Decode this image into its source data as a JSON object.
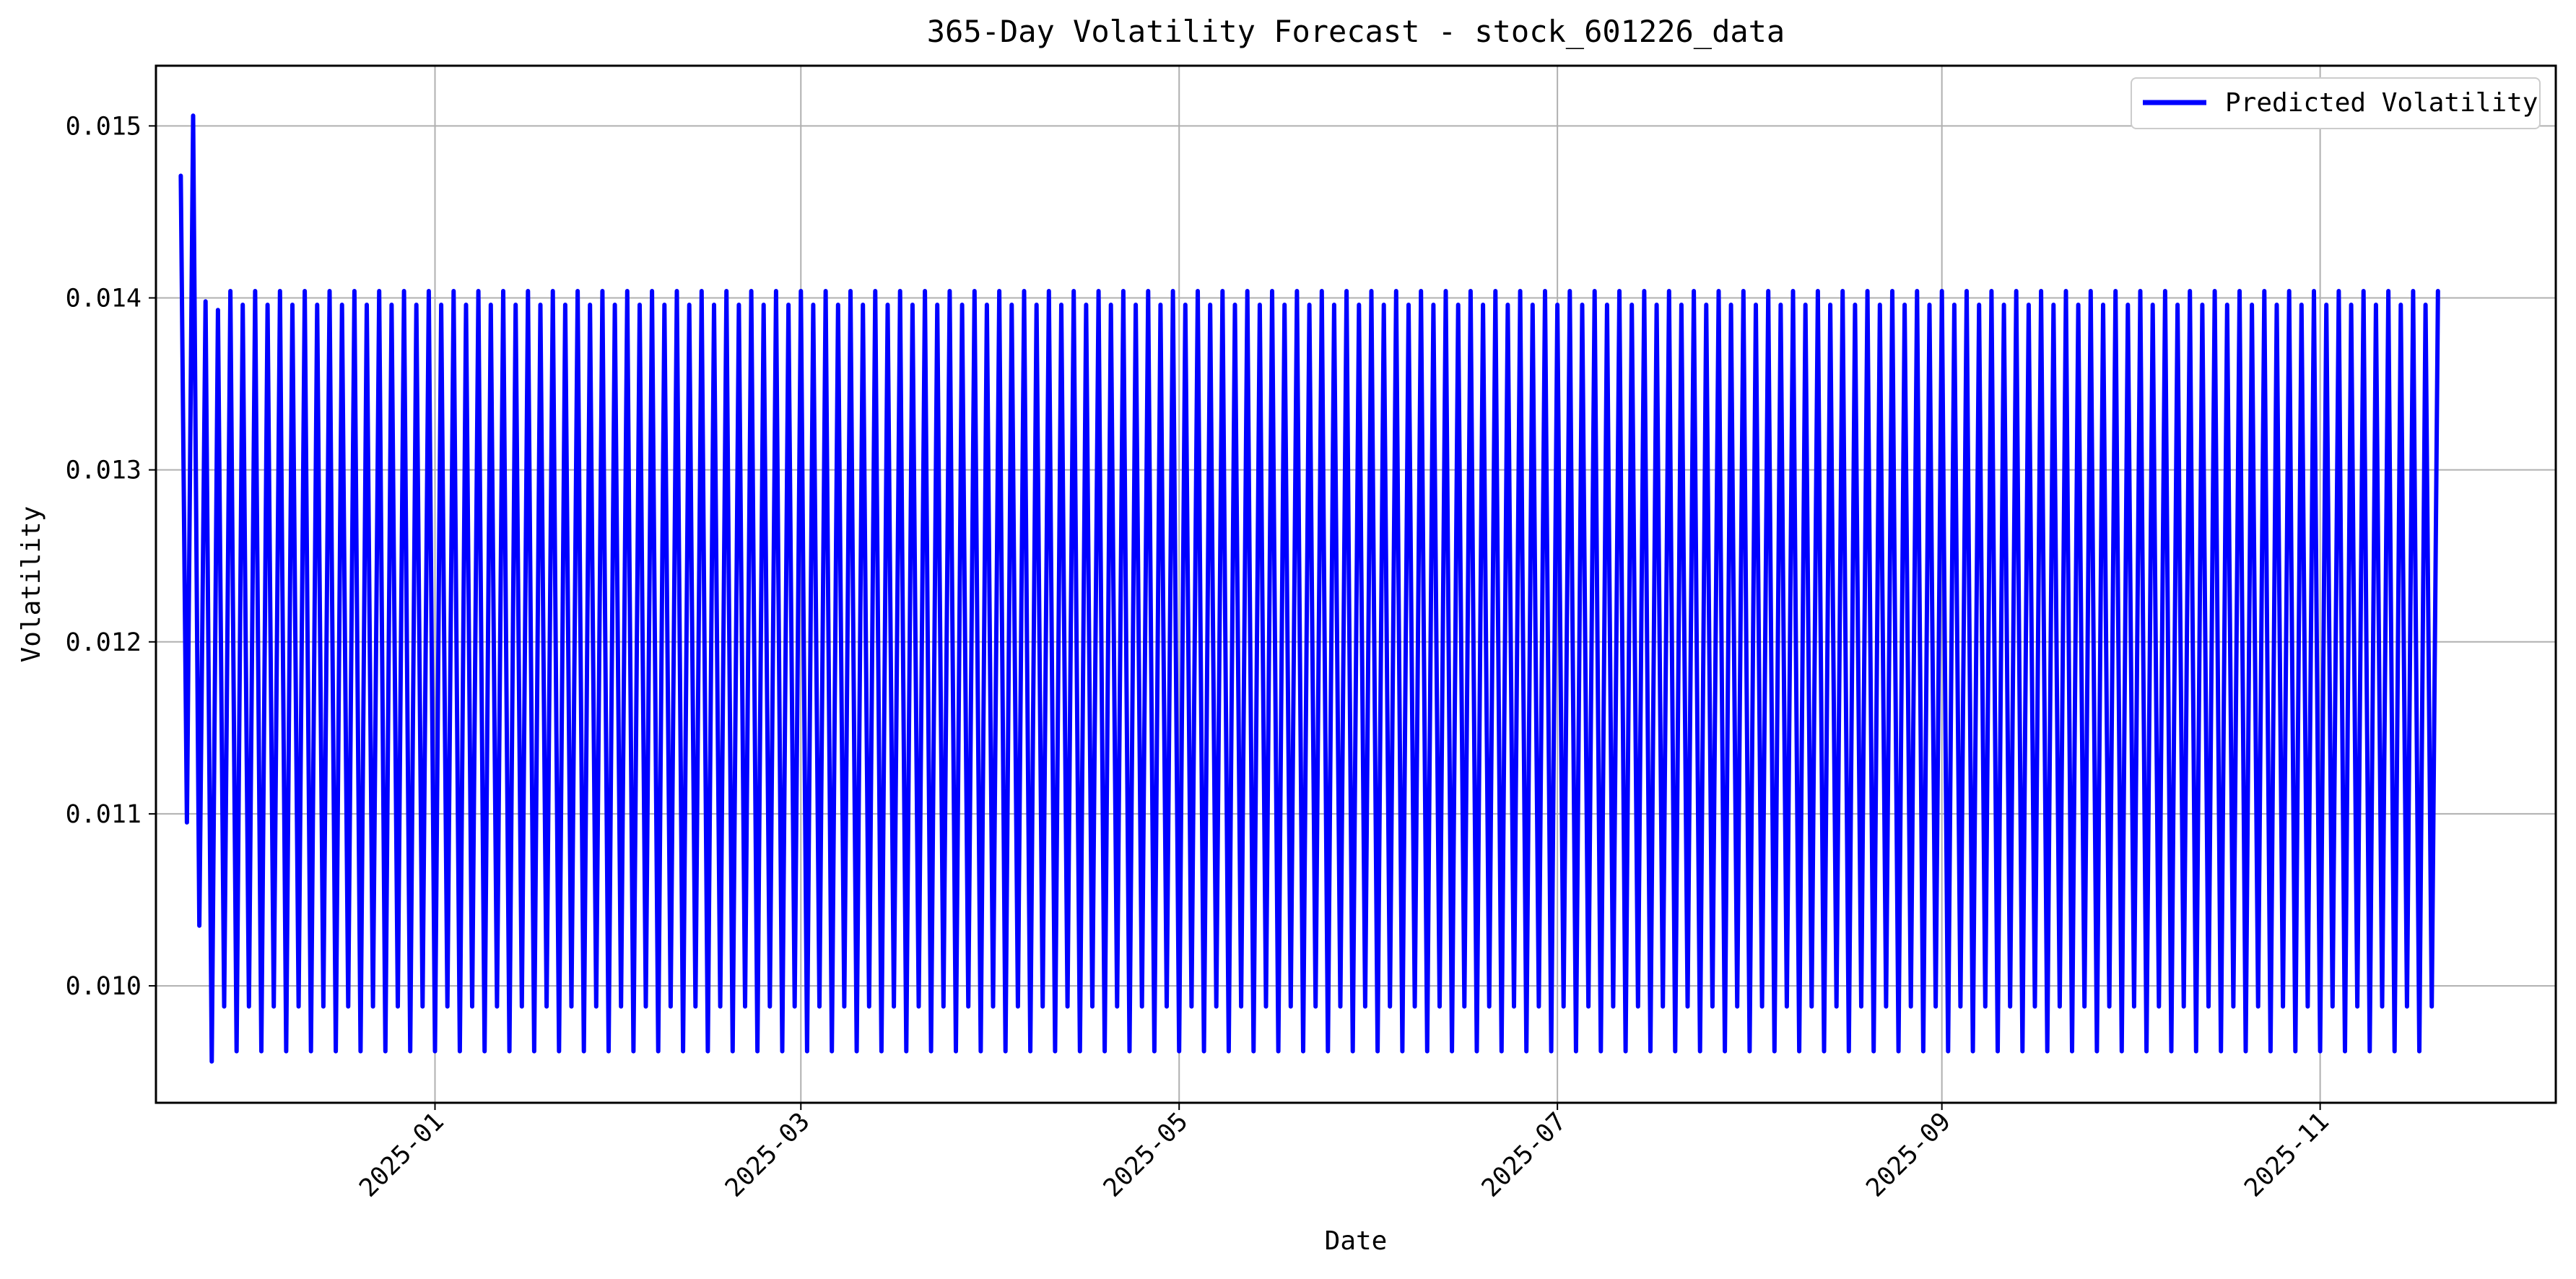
{
  "chart_data": {
    "type": "line",
    "title": "365-Day Volatility Forecast - stock_601226_data",
    "xlabel": "Date",
    "ylabel": "Volatility",
    "x_axis": {
      "type": "date",
      "range": [
        "2024-11-17",
        "2025-12-09"
      ],
      "ticks": [
        "2025-01",
        "2025-03",
        "2025-05",
        "2025-07",
        "2025-09",
        "2025-11"
      ],
      "tick_label_rotation": 45
    },
    "y_axis": {
      "range": [
        0.00932,
        0.01535
      ],
      "ticks": [
        0.01,
        0.011,
        0.012,
        0.013,
        0.014,
        0.015
      ],
      "tick_labels": [
        "0.010",
        "0.011",
        "0.012",
        "0.013",
        "0.014",
        "0.015"
      ]
    },
    "grid": true,
    "legend": {
      "position": "top-right",
      "entries": [
        "Predicted Volatility"
      ]
    },
    "series": [
      {
        "name": "Predicted Volatility",
        "color": "#0000ff",
        "start_date": "2024-11-21",
        "days": 365,
        "initial_values": [
          0.01471,
          0.01095,
          0.01506,
          0.01035,
          0.01398,
          0.00956,
          0.01393,
          0.00988
        ],
        "cycle_values": [
          0.01404,
          0.00962,
          0.01396,
          0.00988
        ]
      }
    ]
  }
}
